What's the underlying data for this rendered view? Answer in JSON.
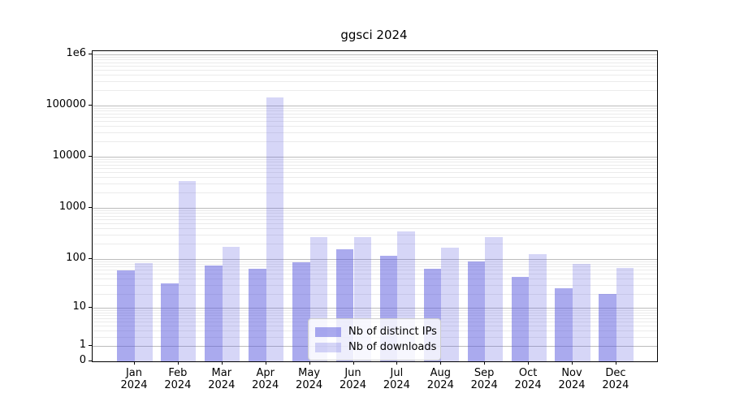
{
  "chart_data": {
    "type": "bar",
    "title": "ggsci 2024",
    "categories": [
      "Jan 2024",
      "Feb 2024",
      "Mar 2024",
      "Apr 2024",
      "May 2024",
      "Jun 2024",
      "Jul 2024",
      "Aug 2024",
      "Sep 2024",
      "Oct 2024",
      "Nov 2024",
      "Dec 2024"
    ],
    "series": [
      {
        "name": "Nb of distinct IPs",
        "color": "rgba(85,85,221,0.50)",
        "hex_on_white": "#aaaaee",
        "values": [
          59,
          32,
          73,
          63,
          86,
          153,
          113,
          63,
          89,
          44,
          26,
          20
        ]
      },
      {
        "name": "Nb of downloads",
        "color": "rgba(85,85,221,0.24)",
        "hex_on_white": "#d9d9f6",
        "values": [
          82,
          3300,
          171,
          145000,
          262,
          262,
          350,
          165,
          262,
          122,
          80,
          65
        ]
      }
    ],
    "yscale": "log10(1+x)",
    "ylim": [
      0,
      1120000
    ],
    "yticks": [
      {
        "label": "1e6",
        "value": 1000000
      },
      {
        "label": "100000",
        "value": 100000
      },
      {
        "label": "10000",
        "value": 10000
      },
      {
        "label": "1000",
        "value": 1000
      },
      {
        "label": "100",
        "value": 100
      },
      {
        "label": "10",
        "value": 10
      },
      {
        "label": "1",
        "value": 1
      },
      {
        "label": "0",
        "value": 0
      }
    ],
    "grid": "horizontal major+minor",
    "legend_position": "lower center inside plot",
    "colors": {
      "grid_major": "#bcbcbc",
      "grid_minor": "#ebebeb",
      "axis": "#000000"
    }
  }
}
